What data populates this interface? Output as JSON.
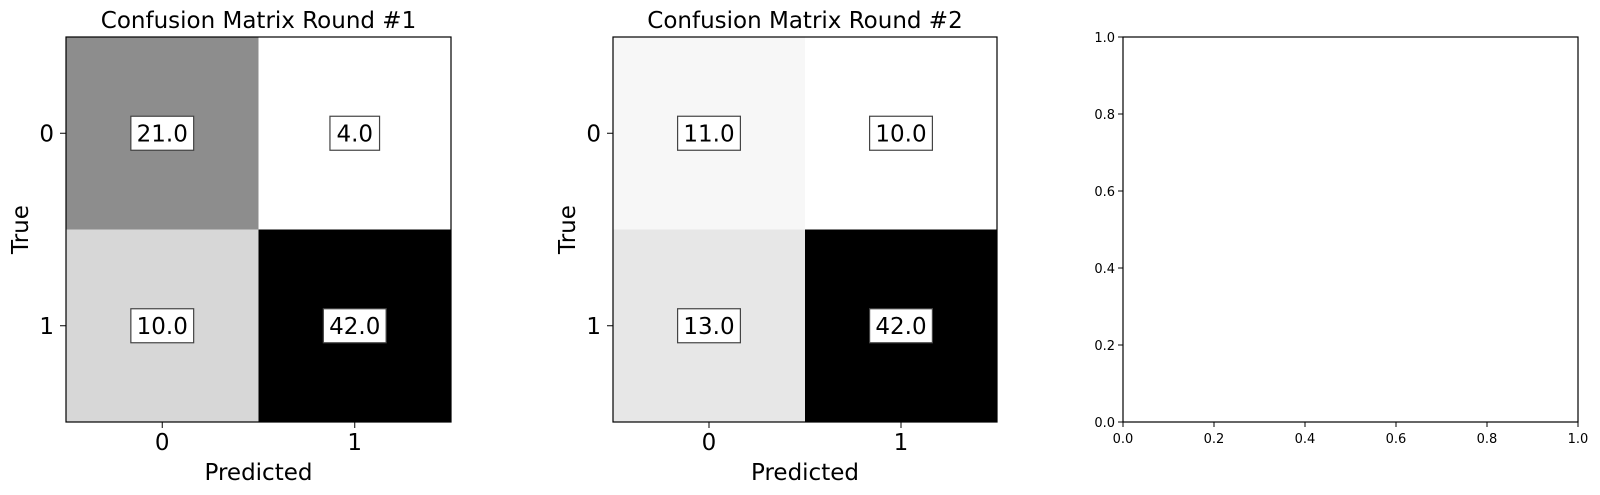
{
  "chart_data": [
    {
      "type": "heatmap",
      "title": "Confusion Matrix Round #1",
      "xlabel": "Predicted",
      "ylabel": "True",
      "x_categories": [
        "0",
        "1"
      ],
      "y_categories": [
        "0",
        "1"
      ],
      "values": [
        [
          21.0,
          4.0
        ],
        [
          10.0,
          42.0
        ]
      ],
      "value_labels": [
        [
          "21.0",
          "4.0"
        ],
        [
          "10.0",
          "42.0"
        ]
      ],
      "colormap": "gray_r",
      "grid": false
    },
    {
      "type": "heatmap",
      "title": "Confusion Matrix Round #2",
      "xlabel": "Predicted",
      "ylabel": "True",
      "x_categories": [
        "0",
        "1"
      ],
      "y_categories": [
        "0",
        "1"
      ],
      "values": [
        [
          11.0,
          10.0
        ],
        [
          13.0,
          42.0
        ]
      ],
      "value_labels": [
        [
          "11.0",
          "10.0"
        ],
        [
          "13.0",
          "42.0"
        ]
      ],
      "colormap": "gray_r",
      "grid": false
    },
    {
      "type": "scatter",
      "title": "",
      "xlabel": "",
      "ylabel": "",
      "xlim": [
        0.0,
        1.0
      ],
      "ylim": [
        0.0,
        1.0
      ],
      "xticks": [
        "0.0",
        "0.2",
        "0.4",
        "0.6",
        "0.8",
        "1.0"
      ],
      "yticks": [
        "0.0",
        "0.2",
        "0.4",
        "0.6",
        "0.8",
        "1.0"
      ],
      "series": [],
      "grid": false
    }
  ]
}
